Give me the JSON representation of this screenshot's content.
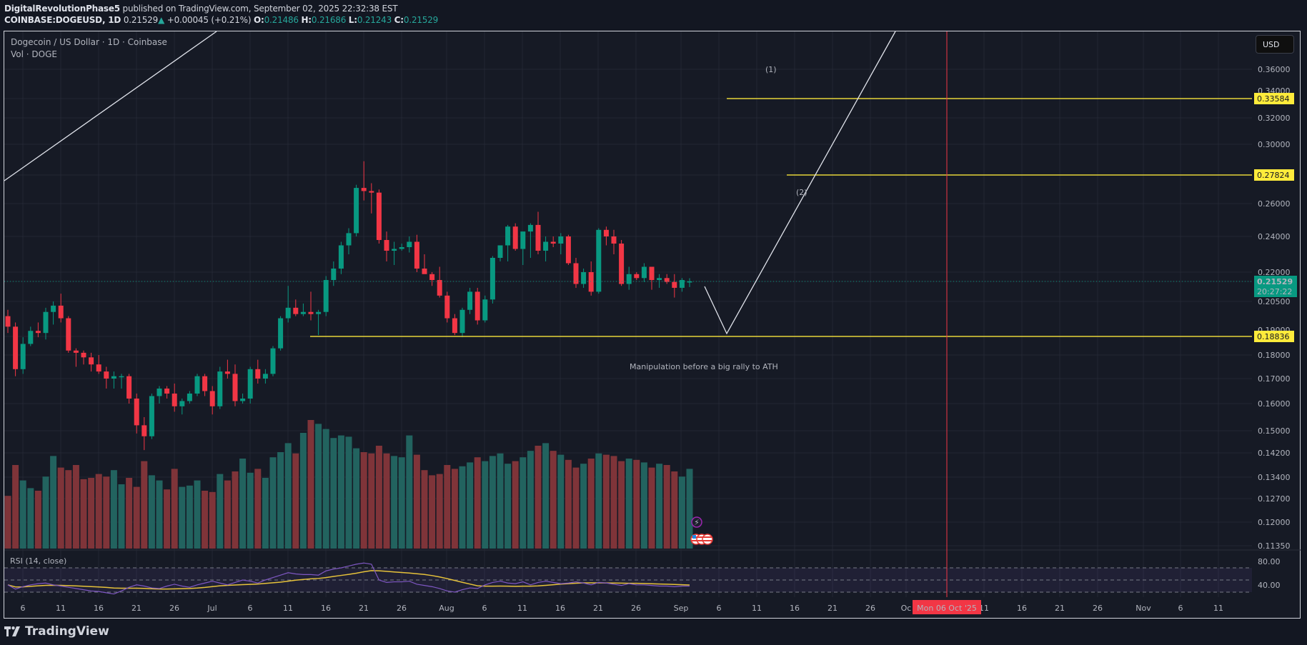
{
  "header": {
    "author": "DigitalRevolutionPhase5",
    "published_text": " published on TradingView.com, September 02, 2025 22:32:38 EST",
    "symbol": "COINBASE:DOGEUSD, 1D",
    "last_price": "0.21529",
    "change": "+0.00045 (+0.21%)",
    "o_label": "O:",
    "o_value": "0.21486",
    "h_label": "H:",
    "h_value": "0.21686",
    "l_label": "L:",
    "l_value": "0.21243",
    "c_label": "C:",
    "c_value": "0.21529"
  },
  "legend": {
    "title": "Dogecoin / US Dollar · 1D · Coinbase",
    "volume": "Vol · DOGE"
  },
  "currency_button": "USD",
  "rsi_label": "RSI (14, close)",
  "annotation_text": "Manipulation before a big rally to ATH",
  "wave_labels": [
    "(1)",
    "(2)"
  ],
  "current_price_tag": {
    "price": "0.21529",
    "countdown": "20:27:22"
  },
  "crosshair_date": "Mon 06 Oct '25",
  "logo_text": "TradingView",
  "colors": {
    "up": "#089981",
    "down": "#f23645",
    "vol_up": "#22635f",
    "vol_down": "#7f3439",
    "level": "#e6d43a",
    "tag_yellow": "#ffeb3b",
    "crosshair": "#f23645",
    "rsi": "#7e57c2",
    "rsi_ma": "#e6c23a",
    "wave_label": "#e07ba0"
  },
  "chart_data": {
    "type": "candlestick",
    "title": "Dogecoin / US Dollar · 1D · Coinbase",
    "xlabel": "",
    "ylabel": "USD",
    "ylim": [
      0.1135,
      0.37
    ],
    "price_axis_ticks": [
      "0.36000",
      "0.34000",
      "0.32000",
      "0.30000",
      "0.26000",
      "0.24000",
      "0.22000",
      "0.20500",
      "0.18000",
      "0.17000",
      "0.16000",
      "0.15000",
      "0.14200",
      "0.13400",
      "0.12700",
      "0.12000",
      "0.11350"
    ],
    "rsi_axis_ticks": [
      "80.00",
      "40.00"
    ],
    "date_ticks": [
      "6",
      "11",
      "16",
      "21",
      "26",
      "Jul",
      "6",
      "11",
      "16",
      "21",
      "26",
      "Aug",
      "6",
      "11",
      "16",
      "21",
      "26",
      "Sep",
      "6",
      "11",
      "16",
      "21",
      "26",
      "Oc",
      "11",
      "16",
      "21",
      "26",
      "Nov",
      "6",
      "11"
    ],
    "horizontal_levels": [
      {
        "label": "0.33584",
        "value": 0.33584
      },
      {
        "label": "0.27824",
        "value": 0.27824
      },
      {
        "label": "0.18836",
        "value": 0.18836
      }
    ],
    "current_price": 0.21529,
    "candles_ohlc": [
      [
        0.198,
        0.201,
        0.19,
        0.193
      ],
      [
        0.193,
        0.195,
        0.171,
        0.174
      ],
      [
        0.174,
        0.188,
        0.172,
        0.185
      ],
      [
        0.185,
        0.193,
        0.184,
        0.191
      ],
      [
        0.191,
        0.195,
        0.188,
        0.19
      ],
      [
        0.19,
        0.202,
        0.187,
        0.2
      ],
      [
        0.2,
        0.205,
        0.194,
        0.203
      ],
      [
        0.203,
        0.209,
        0.195,
        0.197
      ],
      [
        0.197,
        0.198,
        0.181,
        0.182
      ],
      [
        0.182,
        0.183,
        0.175,
        0.181
      ],
      [
        0.181,
        0.182,
        0.176,
        0.179
      ],
      [
        0.179,
        0.181,
        0.173,
        0.176
      ],
      [
        0.176,
        0.18,
        0.172,
        0.173
      ],
      [
        0.173,
        0.175,
        0.166,
        0.17
      ],
      [
        0.17,
        0.173,
        0.166,
        0.171
      ],
      [
        0.171,
        0.172,
        0.166,
        0.171
      ],
      [
        0.171,
        0.172,
        0.16,
        0.162
      ],
      [
        0.162,
        0.164,
        0.149,
        0.152
      ],
      [
        0.152,
        0.155,
        0.143,
        0.148
      ],
      [
        0.148,
        0.164,
        0.147,
        0.163
      ],
      [
        0.163,
        0.167,
        0.16,
        0.166
      ],
      [
        0.166,
        0.167,
        0.162,
        0.164
      ],
      [
        0.164,
        0.168,
        0.157,
        0.159
      ],
      [
        0.159,
        0.162,
        0.156,
        0.161
      ],
      [
        0.161,
        0.165,
        0.16,
        0.164
      ],
      [
        0.164,
        0.172,
        0.163,
        0.171
      ],
      [
        0.171,
        0.172,
        0.163,
        0.165
      ],
      [
        0.165,
        0.167,
        0.156,
        0.159
      ],
      [
        0.159,
        0.175,
        0.158,
        0.173
      ],
      [
        0.173,
        0.178,
        0.17,
        0.172
      ],
      [
        0.172,
        0.176,
        0.159,
        0.161
      ],
      [
        0.161,
        0.164,
        0.16,
        0.162
      ],
      [
        0.162,
        0.175,
        0.16,
        0.174
      ],
      [
        0.174,
        0.178,
        0.168,
        0.17
      ],
      [
        0.17,
        0.174,
        0.168,
        0.172
      ],
      [
        0.172,
        0.184,
        0.171,
        0.183
      ],
      [
        0.183,
        0.198,
        0.182,
        0.197
      ],
      [
        0.197,
        0.213,
        0.195,
        0.202
      ],
      [
        0.202,
        0.206,
        0.198,
        0.199
      ],
      [
        0.199,
        0.204,
        0.198,
        0.2
      ],
      [
        0.2,
        0.21,
        0.196,
        0.199
      ],
      [
        0.199,
        0.201,
        0.189,
        0.2
      ],
      [
        0.2,
        0.218,
        0.198,
        0.216
      ],
      [
        0.216,
        0.226,
        0.213,
        0.222
      ],
      [
        0.222,
        0.237,
        0.219,
        0.235
      ],
      [
        0.235,
        0.245,
        0.23,
        0.242
      ],
      [
        0.242,
        0.272,
        0.24,
        0.27
      ],
      [
        0.27,
        0.288,
        0.262,
        0.268
      ],
      [
        0.268,
        0.273,
        0.254,
        0.267
      ],
      [
        0.267,
        0.269,
        0.236,
        0.238
      ],
      [
        0.238,
        0.243,
        0.226,
        0.232
      ],
      [
        0.232,
        0.237,
        0.224,
        0.233
      ],
      [
        0.233,
        0.236,
        0.232,
        0.234
      ],
      [
        0.234,
        0.24,
        0.231,
        0.237
      ],
      [
        0.237,
        0.241,
        0.22,
        0.222
      ],
      [
        0.222,
        0.23,
        0.22,
        0.219
      ],
      [
        0.219,
        0.22,
        0.213,
        0.216
      ],
      [
        0.216,
        0.223,
        0.207,
        0.208
      ],
      [
        0.208,
        0.21,
        0.195,
        0.197
      ],
      [
        0.197,
        0.199,
        0.189,
        0.19
      ],
      [
        0.19,
        0.202,
        0.188,
        0.201
      ],
      [
        0.201,
        0.212,
        0.199,
        0.21
      ],
      [
        0.21,
        0.212,
        0.194,
        0.196
      ],
      [
        0.196,
        0.208,
        0.195,
        0.206
      ],
      [
        0.206,
        0.229,
        0.204,
        0.228
      ],
      [
        0.228,
        0.234,
        0.226,
        0.235
      ],
      [
        0.235,
        0.247,
        0.226,
        0.246
      ],
      [
        0.246,
        0.248,
        0.232,
        0.233
      ],
      [
        0.233,
        0.241,
        0.224,
        0.243
      ],
      [
        0.243,
        0.248,
        0.228,
        0.247
      ],
      [
        0.247,
        0.255,
        0.23,
        0.232
      ],
      [
        0.232,
        0.24,
        0.226,
        0.237
      ],
      [
        0.237,
        0.24,
        0.234,
        0.236
      ],
      [
        0.236,
        0.242,
        0.23,
        0.24
      ],
      [
        0.24,
        0.241,
        0.224,
        0.225
      ],
      [
        0.225,
        0.228,
        0.212,
        0.214
      ],
      [
        0.214,
        0.222,
        0.212,
        0.22
      ],
      [
        0.22,
        0.226,
        0.208,
        0.21
      ],
      [
        0.21,
        0.245,
        0.209,
        0.244
      ],
      [
        0.244,
        0.246,
        0.235,
        0.24
      ],
      [
        0.24,
        0.244,
        0.23,
        0.236
      ],
      [
        0.236,
        0.238,
        0.213,
        0.214
      ],
      [
        0.214,
        0.223,
        0.211,
        0.219
      ],
      [
        0.219,
        0.22,
        0.216,
        0.217
      ],
      [
        0.217,
        0.225,
        0.215,
        0.223
      ],
      [
        0.223,
        0.223,
        0.211,
        0.216
      ],
      [
        0.216,
        0.219,
        0.212,
        0.217
      ],
      [
        0.217,
        0.219,
        0.214,
        0.215
      ],
      [
        0.215,
        0.219,
        0.207,
        0.212
      ],
      [
        0.212,
        0.217,
        0.21,
        0.216
      ],
      [
        0.2149,
        0.2169,
        0.2124,
        0.2153
      ]
    ],
    "volume_relative": [
      0.41,
      0.65,
      0.53,
      0.47,
      0.45,
      0.56,
      0.72,
      0.63,
      0.61,
      0.65,
      0.54,
      0.55,
      0.58,
      0.56,
      0.61,
      0.5,
      0.55,
      0.48,
      0.68,
      0.57,
      0.53,
      0.46,
      0.62,
      0.48,
      0.49,
      0.53,
      0.45,
      0.44,
      0.58,
      0.53,
      0.6,
      0.7,
      0.59,
      0.62,
      0.55,
      0.71,
      0.75,
      0.82,
      0.74,
      0.9,
      1.0,
      0.97,
      0.93,
      0.86,
      0.88,
      0.87,
      0.78,
      0.75,
      0.74,
      0.8,
      0.74,
      0.72,
      0.71,
      0.88,
      0.73,
      0.61,
      0.57,
      0.58,
      0.65,
      0.62,
      0.64,
      0.67,
      0.71,
      0.68,
      0.72,
      0.74,
      0.66,
      0.68,
      0.71,
      0.76,
      0.8,
      0.82,
      0.76,
      0.73,
      0.69,
      0.63,
      0.66,
      0.7,
      0.74,
      0.73,
      0.72,
      0.68,
      0.7,
      0.69,
      0.67,
      0.63,
      0.66,
      0.65,
      0.6,
      0.56,
      0.62
    ],
    "rsi_values_approx": [
      52,
      45,
      49,
      52,
      54,
      55,
      52,
      50,
      48,
      46,
      44,
      42,
      41,
      39,
      37,
      42,
      48,
      52,
      50,
      47,
      46,
      50,
      53,
      50,
      48,
      52,
      55,
      58,
      55,
      52,
      56,
      60,
      58,
      55,
      60,
      64,
      68,
      72,
      70,
      69,
      69,
      68,
      75,
      78,
      80,
      83,
      86,
      88,
      86,
      60,
      56,
      57,
      57,
      58,
      53,
      51,
      49,
      46,
      42,
      40,
      44,
      47,
      46,
      52,
      56,
      58,
      55,
      54,
      57,
      52,
      56,
      58,
      56,
      54,
      55,
      57,
      55,
      52,
      56,
      55,
      53,
      51,
      54,
      52,
      52,
      51,
      50,
      50,
      49,
      50,
      50
    ],
    "annotations": {
      "wave_1": "(1)",
      "wave_2": "(2)",
      "note": "Manipulation before a big rally to ATH"
    }
  }
}
